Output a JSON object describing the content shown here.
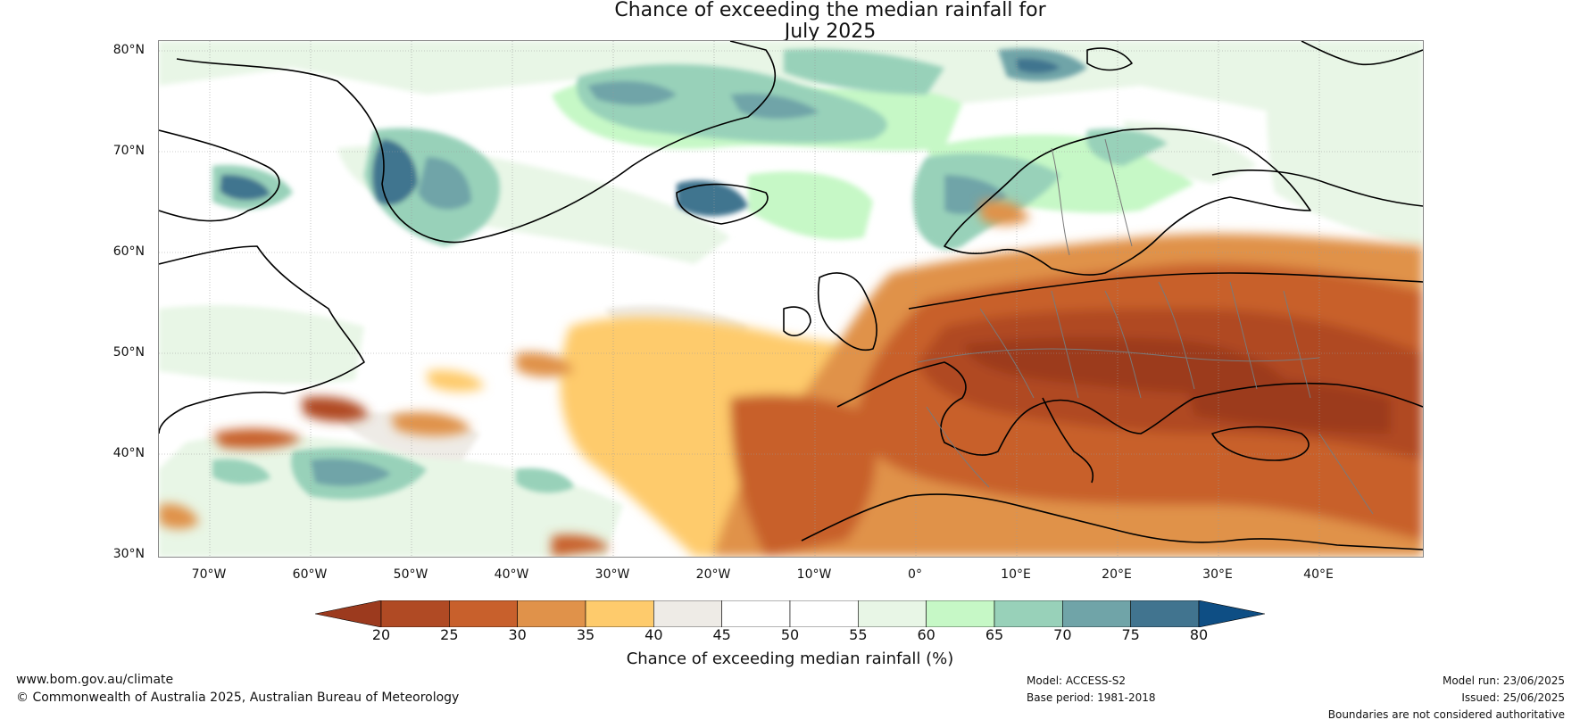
{
  "title": {
    "line1": "Chance of exceeding the median rainfall for",
    "line2": "July 2025"
  },
  "lat_ticks": [
    "80°N",
    "70°N",
    "60°N",
    "50°N",
    "40°N",
    "30°N"
  ],
  "lon_ticks": [
    "70°W",
    "60°W",
    "50°W",
    "40°W",
    "30°W",
    "20°W",
    "10°W",
    "0°",
    "10°E",
    "20°E",
    "30°E",
    "40°E"
  ],
  "colorbar": {
    "ticks": [
      "20",
      "25",
      "30",
      "35",
      "40",
      "45",
      "50",
      "55",
      "60",
      "65",
      "70",
      "75",
      "80"
    ],
    "label": "Chance of exceeding median rainfall (%)",
    "colors": [
      "#9c3a1e",
      "#b04a24",
      "#c8602c",
      "#e0924a",
      "#fecb6c",
      "#eeebe6",
      "#ffffff",
      "#ffffff",
      "#e8f6e6",
      "#c6f8c6",
      "#98d1b9",
      "#70a4a8",
      "#41748f",
      "#0e4e84"
    ]
  },
  "footer": {
    "website": "www.bom.gov.au/climate",
    "copyright": "© Commonwealth of Australia 2025, Australian Bureau of Meteorology",
    "model": "Model: ACCESS-S2",
    "base_period": "Base period: 1981-2018",
    "model_run": "Model run: 23/06/2025",
    "issued": "Issued: 25/06/2025",
    "disclaimer": "Boundaries are not considered authoritative"
  }
}
